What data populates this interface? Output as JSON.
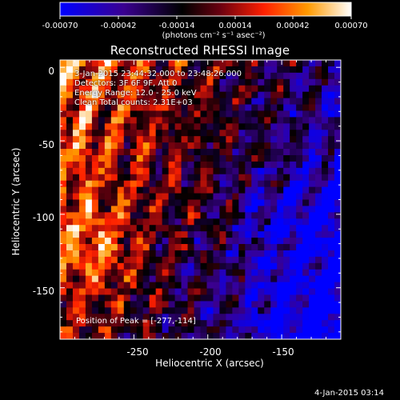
{
  "colorbar": {
    "ticks": [
      "-0.00070",
      "-0.00042",
      "-0.00014",
      "0.00014",
      "0.00042",
      "0.00070"
    ],
    "units": "(photons cm⁻² s⁻¹ asec⁻²)",
    "range": [
      -0.0007,
      0.0007
    ]
  },
  "title": "Reconstructed RHESSI Image",
  "info": {
    "time_range": "3-Jan-2015 23:44:32.000 to 23:48:26.000",
    "detectors": "Detectors: 3F 6F 9F, Att 0",
    "energy": "Energy Range: 12.0 - 25.0 keV",
    "clean": "Clean     Total counts: 2.31E+03"
  },
  "peak_label": "Position of Peak = [-277,-114]",
  "datestamp": "4-Jan-2015 03:14",
  "chart_data": {
    "type": "heatmap",
    "title": "Reconstructed RHESSI Image",
    "xlabel": "Heliocentric X (arcsec)",
    "ylabel": "Heliocentric Y (arcsec)",
    "xlim": [
      -300,
      -110
    ],
    "ylim": [
      -185,
      5
    ],
    "x_ticks": [
      -250,
      -200,
      -150
    ],
    "y_ticks": [
      0,
      -50,
      -100,
      -150
    ],
    "colorbar_range": [
      -0.0007,
      0.0007
    ],
    "peak_position": [
      -277,
      -114
    ],
    "colormap": "blue-purple-red-yellow-white"
  }
}
